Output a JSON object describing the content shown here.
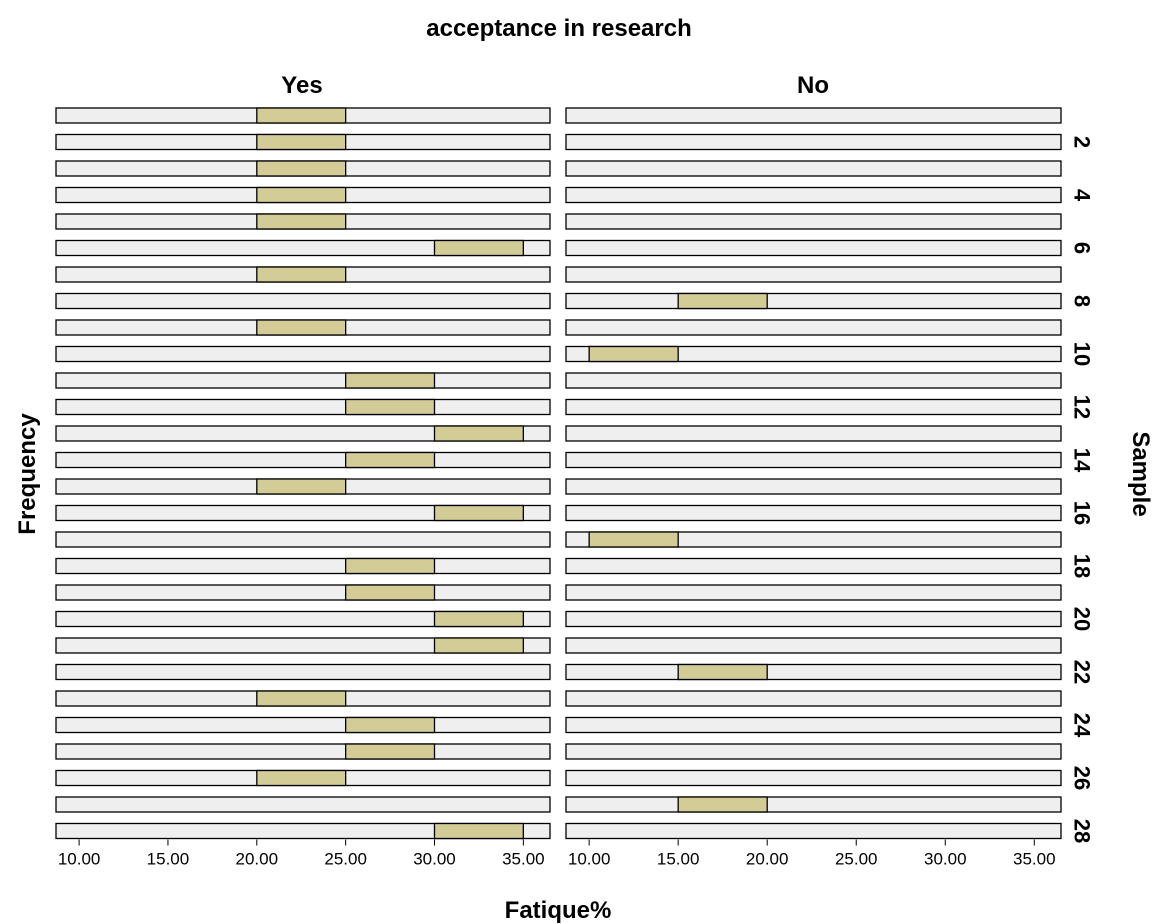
{
  "chart_data": {
    "type": "bar",
    "title": "acceptance in research",
    "facet_labels": [
      "Yes",
      "No"
    ],
    "xlabel": "Fatique%",
    "ylabel": "Frequency",
    "row_label": "Sample",
    "xlim": [
      8.7,
      36.5
    ],
    "x_ticks": [
      "10.00",
      "15.00",
      "20.00",
      "25.00",
      "30.00",
      "35.00"
    ],
    "bin_width": 5,
    "row_tick_labels": [
      "2",
      "4",
      "6",
      "8",
      "10",
      "12",
      "14",
      "16",
      "18",
      "20",
      "22",
      "24",
      "26",
      "28"
    ],
    "samples": [
      1,
      2,
      3,
      4,
      5,
      6,
      7,
      8,
      9,
      10,
      11,
      12,
      13,
      14,
      15,
      16,
      17,
      18,
      19,
      20,
      21,
      22,
      23,
      24,
      25,
      26,
      27,
      28
    ],
    "series": [
      {
        "facet": "Yes",
        "bins": [
          20,
          20,
          20,
          20,
          20,
          30,
          20,
          null,
          20,
          null,
          25,
          25,
          30,
          25,
          20,
          30,
          null,
          25,
          25,
          30,
          30,
          null,
          20,
          25,
          25,
          20,
          null,
          30
        ]
      },
      {
        "facet": "No",
        "bins": [
          null,
          null,
          null,
          null,
          null,
          null,
          null,
          15,
          null,
          10,
          null,
          null,
          null,
          null,
          null,
          null,
          10,
          null,
          null,
          null,
          null,
          15,
          null,
          null,
          null,
          null,
          15,
          null
        ]
      }
    ],
    "grid": false,
    "colors": {
      "row_background": "#efefef",
      "bar_fill": "#d4cc96",
      "stroke": "#000000"
    }
  }
}
